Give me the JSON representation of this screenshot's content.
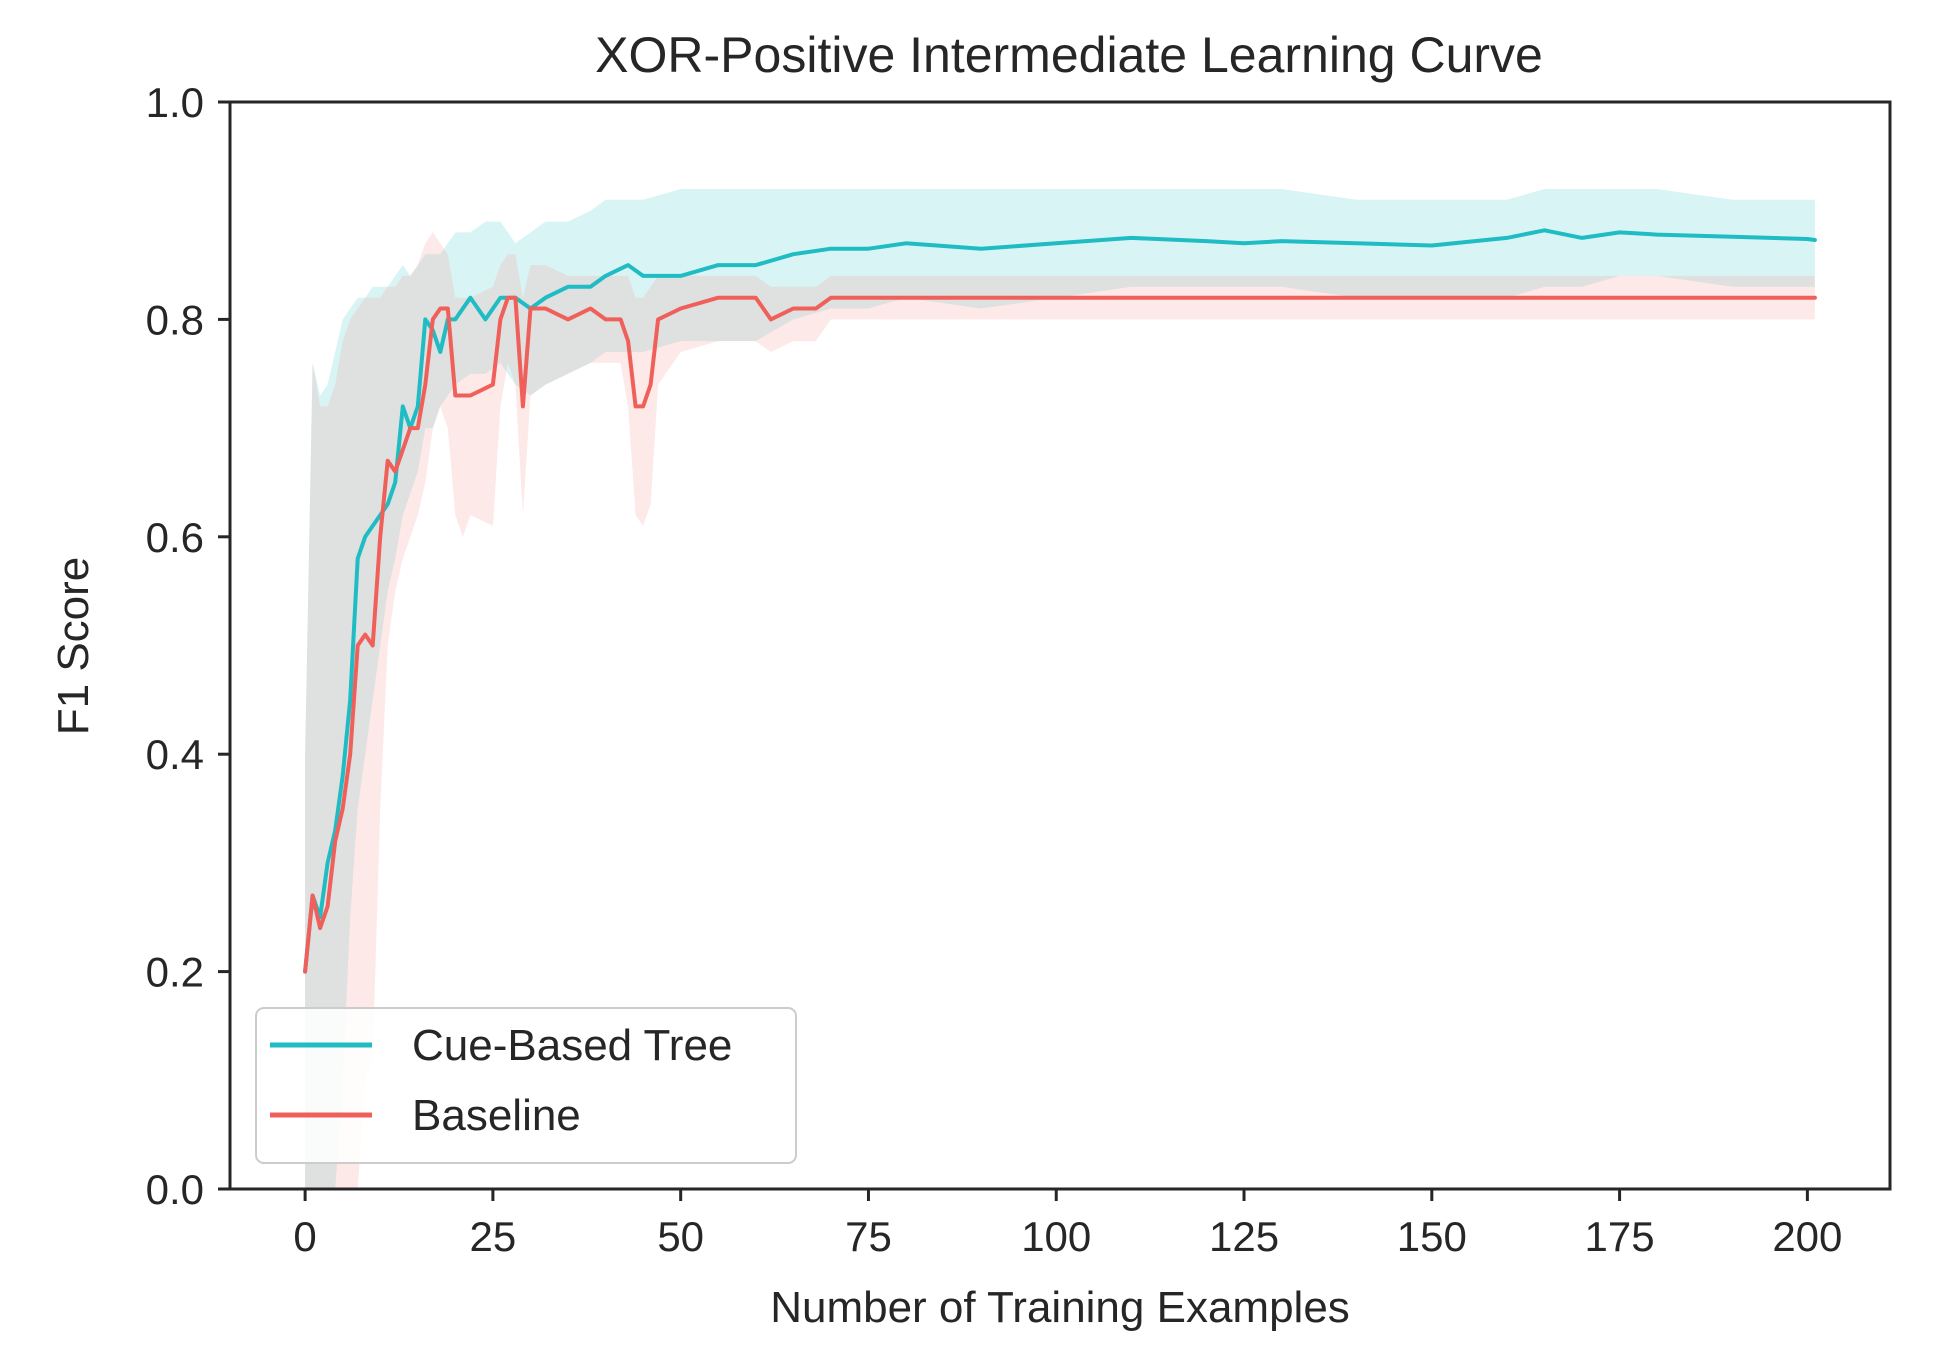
{
  "chart_data": {
    "type": "line",
    "title": "XOR-Positive Intermediate Learning Curve",
    "xlabel": "Number of Training Examples",
    "ylabel": "F1 Score",
    "xlim": [
      -10,
      211
    ],
    "ylim": [
      0.0,
      1.0
    ],
    "xticks": [
      0,
      25,
      50,
      75,
      100,
      125,
      150,
      175,
      200
    ],
    "yticks": [
      0.0,
      0.2,
      0.4,
      0.6,
      0.8,
      1.0
    ],
    "ytick_labels": [
      "0.0",
      "0.2",
      "0.4",
      "0.6",
      "0.8",
      "1.0"
    ],
    "grid": false,
    "legend_position": "lower-left",
    "series": [
      {
        "name": "Cue-Based Tree",
        "color": "#1fbcc4",
        "band_color": "#1fbcc4",
        "x": [
          0,
          1,
          2,
          3,
          4,
          5,
          6,
          7,
          8,
          9,
          10,
          11,
          12,
          13,
          14,
          15,
          16,
          17,
          18,
          19,
          20,
          22,
          24,
          26,
          28,
          30,
          32,
          35,
          38,
          40,
          43,
          45,
          50,
          55,
          60,
          65,
          70,
          75,
          80,
          90,
          100,
          110,
          120,
          125,
          130,
          140,
          150,
          160,
          165,
          170,
          175,
          180,
          190,
          200,
          201
        ],
        "values": [
          0.2,
          0.27,
          0.25,
          0.3,
          0.33,
          0.38,
          0.45,
          0.58,
          0.6,
          0.61,
          0.62,
          0.63,
          0.65,
          0.72,
          0.7,
          0.72,
          0.8,
          0.79,
          0.77,
          0.8,
          0.8,
          0.82,
          0.8,
          0.82,
          0.82,
          0.81,
          0.82,
          0.83,
          0.83,
          0.84,
          0.85,
          0.84,
          0.84,
          0.85,
          0.85,
          0.86,
          0.865,
          0.865,
          0.87,
          0.865,
          0.87,
          0.875,
          0.872,
          0.87,
          0.872,
          0.87,
          0.868,
          0.875,
          0.882,
          0.875,
          0.88,
          0.878,
          0.876,
          0.874,
          0.873
        ],
        "lower": [
          0.0,
          0.0,
          0.0,
          0.0,
          0.0,
          0.1,
          0.25,
          0.35,
          0.4,
          0.45,
          0.5,
          0.55,
          0.58,
          0.62,
          0.64,
          0.66,
          0.7,
          0.7,
          0.72,
          0.73,
          0.74,
          0.75,
          0.75,
          0.76,
          0.74,
          0.73,
          0.74,
          0.75,
          0.76,
          0.77,
          0.77,
          0.77,
          0.78,
          0.78,
          0.78,
          0.8,
          0.81,
          0.81,
          0.82,
          0.81,
          0.82,
          0.83,
          0.83,
          0.83,
          0.83,
          0.82,
          0.82,
          0.82,
          0.83,
          0.83,
          0.84,
          0.84,
          0.83,
          0.83,
          0.83
        ],
        "upper": [
          0.4,
          0.76,
          0.73,
          0.74,
          0.77,
          0.8,
          0.81,
          0.82,
          0.82,
          0.83,
          0.83,
          0.83,
          0.84,
          0.85,
          0.84,
          0.85,
          0.86,
          0.86,
          0.86,
          0.87,
          0.88,
          0.88,
          0.89,
          0.89,
          0.87,
          0.88,
          0.89,
          0.89,
          0.9,
          0.91,
          0.91,
          0.91,
          0.92,
          0.92,
          0.92,
          0.92,
          0.92,
          0.92,
          0.92,
          0.92,
          0.92,
          0.92,
          0.92,
          0.92,
          0.92,
          0.91,
          0.91,
          0.91,
          0.92,
          0.92,
          0.92,
          0.92,
          0.91,
          0.91,
          0.91
        ]
      },
      {
        "name": "Baseline",
        "color": "#f0605a",
        "band_color": "#f49a95",
        "x": [
          0,
          1,
          2,
          3,
          4,
          5,
          6,
          7,
          8,
          9,
          10,
          11,
          12,
          13,
          14,
          15,
          16,
          17,
          18,
          19,
          20,
          21,
          22,
          25,
          26,
          27,
          28,
          29,
          30,
          32,
          35,
          38,
          40,
          42,
          43,
          44,
          45,
          46,
          47,
          50,
          55,
          60,
          62,
          65,
          68,
          70,
          80,
          100,
          120,
          150,
          175,
          200,
          201
        ],
        "values": [
          0.2,
          0.27,
          0.24,
          0.26,
          0.32,
          0.35,
          0.4,
          0.5,
          0.51,
          0.5,
          0.6,
          0.67,
          0.66,
          0.68,
          0.7,
          0.7,
          0.74,
          0.8,
          0.81,
          0.81,
          0.73,
          0.73,
          0.73,
          0.74,
          0.8,
          0.82,
          0.82,
          0.72,
          0.81,
          0.81,
          0.8,
          0.81,
          0.8,
          0.8,
          0.78,
          0.72,
          0.72,
          0.74,
          0.8,
          0.81,
          0.82,
          0.82,
          0.8,
          0.81,
          0.81,
          0.82,
          0.82,
          0.82,
          0.82,
          0.82,
          0.82,
          0.82,
          0.82
        ],
        "lower": [
          0.0,
          0.0,
          0.0,
          0.0,
          0.0,
          0.0,
          0.0,
          0.0,
          0.1,
          0.12,
          0.35,
          0.5,
          0.55,
          0.58,
          0.6,
          0.62,
          0.65,
          0.7,
          0.72,
          0.7,
          0.62,
          0.6,
          0.62,
          0.61,
          0.72,
          0.76,
          0.74,
          0.62,
          0.73,
          0.74,
          0.75,
          0.76,
          0.76,
          0.76,
          0.72,
          0.62,
          0.61,
          0.63,
          0.74,
          0.77,
          0.78,
          0.78,
          0.77,
          0.78,
          0.78,
          0.8,
          0.8,
          0.8,
          0.8,
          0.8,
          0.8,
          0.8,
          0.8
        ],
        "upper": [
          0.4,
          0.76,
          0.72,
          0.72,
          0.74,
          0.78,
          0.8,
          0.81,
          0.82,
          0.82,
          0.82,
          0.83,
          0.83,
          0.84,
          0.84,
          0.85,
          0.87,
          0.88,
          0.87,
          0.86,
          0.82,
          0.82,
          0.82,
          0.83,
          0.85,
          0.86,
          0.86,
          0.82,
          0.85,
          0.85,
          0.84,
          0.84,
          0.84,
          0.84,
          0.84,
          0.82,
          0.82,
          0.83,
          0.84,
          0.84,
          0.84,
          0.84,
          0.83,
          0.83,
          0.83,
          0.84,
          0.84,
          0.84,
          0.84,
          0.84,
          0.84,
          0.84,
          0.84
        ]
      }
    ]
  }
}
